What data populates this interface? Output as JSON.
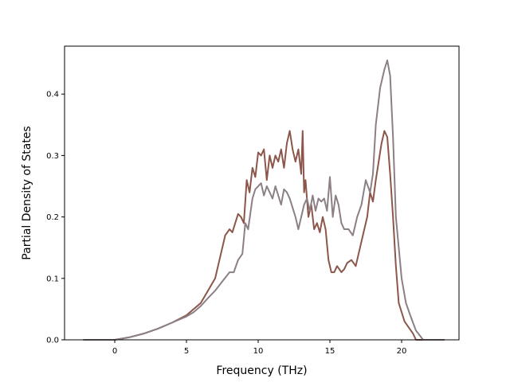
{
  "chart_data": {
    "type": "line",
    "title": "",
    "xlabel": "Frequency (THz)",
    "ylabel": "Partial Density of States",
    "xlim": [
      -3.5,
      24
    ],
    "ylim": [
      0,
      0.478
    ],
    "xticks": [
      0,
      5,
      10,
      15,
      20
    ],
    "yticks": [
      0.0,
      0.1,
      0.2,
      0.3,
      0.4
    ],
    "xtick_labels": [
      "0",
      "5",
      "10",
      "15",
      "20"
    ],
    "ytick_labels": [
      "0.0",
      "0.1",
      "0.2",
      "0.3",
      "0.4"
    ],
    "grid": false,
    "legend": "none",
    "series": [
      {
        "color": "#8c564b",
        "x": [
          -2.2,
          0.0,
          1.0,
          2.0,
          3.0,
          4.0,
          5.0,
          5.5,
          6.0,
          6.5,
          7.0,
          7.5,
          7.7,
          8.0,
          8.2,
          8.4,
          8.6,
          8.8,
          9.0,
          9.2,
          9.4,
          9.6,
          9.8,
          10.0,
          10.2,
          10.4,
          10.6,
          10.8,
          11.0,
          11.2,
          11.4,
          11.6,
          11.8,
          12.0,
          12.2,
          12.4,
          12.6,
          12.8,
          13.0,
          13.1,
          13.2,
          13.3,
          13.5,
          13.7,
          13.9,
          14.1,
          14.3,
          14.5,
          14.7,
          14.9,
          15.1,
          15.3,
          15.5,
          15.8,
          16.0,
          16.2,
          16.5,
          16.8,
          17.0,
          17.3,
          17.6,
          17.8,
          18.0,
          18.2,
          18.4,
          18.6,
          18.8,
          19.0,
          19.2,
          19.4,
          19.6,
          19.8,
          20.0,
          20.2,
          20.5,
          20.8,
          21.0,
          21.5,
          23.0
        ],
        "y": [
          0.0,
          0.0,
          0.004,
          0.01,
          0.018,
          0.028,
          0.04,
          0.05,
          0.06,
          0.08,
          0.1,
          0.15,
          0.17,
          0.18,
          0.175,
          0.19,
          0.205,
          0.2,
          0.19,
          0.26,
          0.24,
          0.28,
          0.265,
          0.305,
          0.3,
          0.31,
          0.26,
          0.3,
          0.28,
          0.3,
          0.29,
          0.31,
          0.28,
          0.32,
          0.34,
          0.31,
          0.29,
          0.31,
          0.27,
          0.34,
          0.24,
          0.26,
          0.2,
          0.22,
          0.18,
          0.19,
          0.175,
          0.2,
          0.18,
          0.13,
          0.11,
          0.11,
          0.12,
          0.11,
          0.115,
          0.125,
          0.13,
          0.12,
          0.14,
          0.17,
          0.2,
          0.24,
          0.225,
          0.26,
          0.29,
          0.32,
          0.34,
          0.33,
          0.27,
          0.2,
          0.12,
          0.06,
          0.045,
          0.03,
          0.02,
          0.01,
          0.0,
          0.0,
          0.0
        ]
      },
      {
        "color": "#8c7f85",
        "x": [
          -2.2,
          0.0,
          1.0,
          2.0,
          3.0,
          4.0,
          5.0,
          5.5,
          6.0,
          6.5,
          7.0,
          7.5,
          8.0,
          8.3,
          8.6,
          8.9,
          9.1,
          9.3,
          9.6,
          9.8,
          10.0,
          10.2,
          10.4,
          10.6,
          10.8,
          11.0,
          11.2,
          11.4,
          11.6,
          11.8,
          12.0,
          12.2,
          12.4,
          12.6,
          12.8,
          13.0,
          13.2,
          13.4,
          13.6,
          13.8,
          14.0,
          14.2,
          14.4,
          14.6,
          14.8,
          15.0,
          15.2,
          15.4,
          15.6,
          15.8,
          16.0,
          16.3,
          16.6,
          16.9,
          17.2,
          17.5,
          17.8,
          18.0,
          18.2,
          18.5,
          18.8,
          19.0,
          19.2,
          19.4,
          19.6,
          19.8,
          20.0,
          20.3,
          20.6,
          21.0,
          21.5,
          23.0
        ],
        "y": [
          0.0,
          0.0,
          0.004,
          0.01,
          0.018,
          0.028,
          0.038,
          0.045,
          0.055,
          0.068,
          0.08,
          0.095,
          0.11,
          0.11,
          0.13,
          0.14,
          0.19,
          0.18,
          0.23,
          0.245,
          0.25,
          0.255,
          0.235,
          0.25,
          0.24,
          0.23,
          0.25,
          0.235,
          0.22,
          0.245,
          0.24,
          0.23,
          0.215,
          0.2,
          0.18,
          0.2,
          0.22,
          0.23,
          0.21,
          0.235,
          0.21,
          0.23,
          0.225,
          0.23,
          0.21,
          0.265,
          0.2,
          0.235,
          0.22,
          0.19,
          0.18,
          0.18,
          0.17,
          0.2,
          0.22,
          0.26,
          0.24,
          0.27,
          0.35,
          0.41,
          0.44,
          0.455,
          0.43,
          0.33,
          0.2,
          0.15,
          0.1,
          0.06,
          0.04,
          0.015,
          0.0,
          0.0
        ]
      }
    ]
  }
}
